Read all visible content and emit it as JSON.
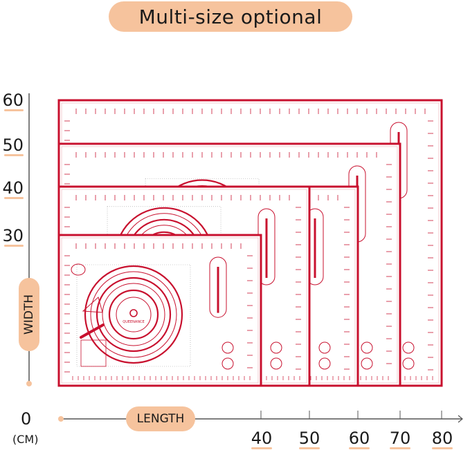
{
  "title": "Multi-size optional",
  "y_axis": {
    "label": "WIDTH",
    "ticks": [
      "60",
      "50",
      "40",
      "30"
    ]
  },
  "x_axis": {
    "label": "LENGTH",
    "origin": "0",
    "unit": "(CM)",
    "ticks": [
      "40",
      "50",
      "60",
      "70",
      "80"
    ]
  },
  "mats": [
    {
      "length_cm": 80,
      "width_cm": 60
    },
    {
      "length_cm": 70,
      "width_cm": 50
    },
    {
      "length_cm": 60,
      "width_cm": 40
    },
    {
      "length_cm": 50,
      "width_cm": 40
    },
    {
      "length_cm": 40,
      "width_cm": 30
    }
  ],
  "mat_brand_logo": "QUEENANCE",
  "colors": {
    "accent": "#f6c39d",
    "mat_red": "#c8102e",
    "axis": "#555555"
  }
}
